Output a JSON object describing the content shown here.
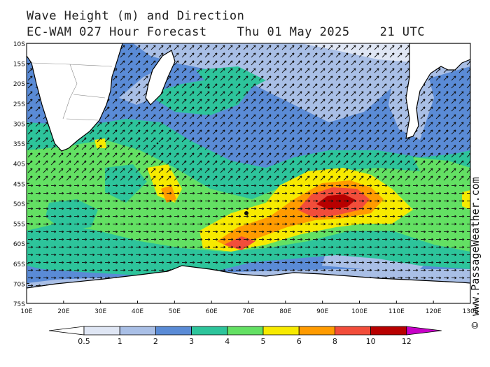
{
  "header": {
    "title_line1": "Wave Height (m) and Direction",
    "model": "EC-WAM 027 Hour Forecast",
    "date": "Thu 01 May 2025",
    "time": "21 UTC"
  },
  "copyright": "© www.PassageWeather.com",
  "axes": {
    "lat_labels": [
      "10S",
      "15S",
      "20S",
      "25S",
      "30S",
      "35S",
      "40S",
      "45S",
      "50S",
      "55S",
      "60S",
      "65S",
      "70S",
      "75S"
    ],
    "lon_labels": [
      "10E",
      "20E",
      "30E",
      "40E",
      "50E",
      "60E",
      "70E",
      "80E",
      "90E",
      "100E",
      "110E",
      "120E",
      "130E"
    ]
  },
  "legend": {
    "ticks": [
      "0.5",
      "1",
      "2",
      "3",
      "4",
      "5",
      "6",
      "8",
      "10",
      "12"
    ],
    "colors": [
      "#ffffff",
      "#dfe6f4",
      "#a9bfe6",
      "#5a8bd6",
      "#2dc49b",
      "#63e063",
      "#f7ea00",
      "#ff9b00",
      "#f24d3a",
      "#b80000",
      "#c800c8"
    ]
  },
  "map_colors": {
    "land": "#ffffff",
    "coast": "#000000",
    "ocean_base": "#5a8bd6"
  },
  "wave_data": {
    "unit": "m",
    "max_center": {
      "lon": 93,
      "lat": -46,
      "value": 10
    }
  }
}
